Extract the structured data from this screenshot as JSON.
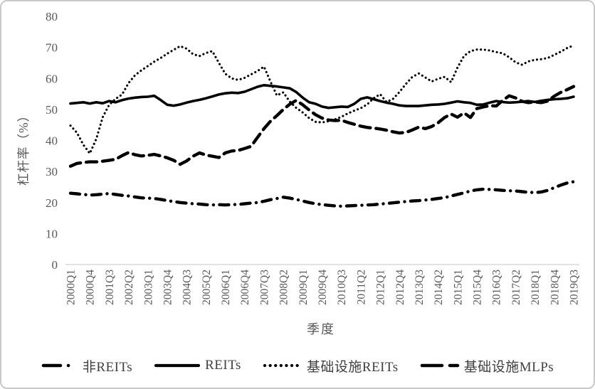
{
  "figure": {
    "tick_color": "#595959",
    "axis_title_color": "#595959",
    "legend_text_color": "#404040",
    "line_color": "#000000",
    "axis_line_color": "#d9d9d9",
    "border_color": "#c9c9c9",
    "legend": [
      {
        "slug": "non-reits",
        "label": "非REITs",
        "style": "dashdot"
      },
      {
        "slug": "reits",
        "label": "REITs",
        "style": "solid"
      },
      {
        "slug": "infra-reits",
        "label": "基础设施REITs",
        "style": "dotted"
      },
      {
        "slug": "infra-mlps",
        "label": "基础设施MLPs",
        "style": "dashed"
      }
    ]
  },
  "chart_data": {
    "type": "line",
    "title": "",
    "xlabel": "季度",
    "ylabel": "杠杆率（%）",
    "ylim": [
      0,
      80
    ],
    "y_ticks": [
      0,
      10,
      20,
      30,
      40,
      50,
      60,
      70,
      80
    ],
    "grid": false,
    "legend_position": "bottom",
    "x_tick_every": 3,
    "categories": [
      "2000Q1",
      "2000Q2",
      "2000Q3",
      "2000Q4",
      "2001Q1",
      "2001Q2",
      "2001Q3",
      "2001Q4",
      "2002Q1",
      "2002Q2",
      "2002Q3",
      "2002Q4",
      "2003Q1",
      "2003Q2",
      "2003Q3",
      "2003Q4",
      "2004Q1",
      "2004Q2",
      "2004Q3",
      "2004Q4",
      "2005Q1",
      "2005Q2",
      "2005Q3",
      "2005Q4",
      "2006Q1",
      "2006Q2",
      "2006Q3",
      "2006Q4",
      "2007Q1",
      "2007Q2",
      "2007Q3",
      "2007Q4",
      "2008Q1",
      "2008Q2",
      "2008Q3",
      "2008Q4",
      "2009Q1",
      "2009Q2",
      "2009Q3",
      "2009Q4",
      "2010Q1",
      "2010Q2",
      "2010Q3",
      "2010Q4",
      "2011Q1",
      "2011Q2",
      "2011Q3",
      "2011Q4",
      "2012Q1",
      "2012Q2",
      "2012Q3",
      "2012Q4",
      "2013Q1",
      "2013Q2",
      "2013Q3",
      "2013Q4",
      "2014Q1",
      "2014Q2",
      "2014Q3",
      "2014Q4",
      "2015Q1",
      "2015Q2",
      "2015Q3",
      "2015Q4",
      "2016Q1",
      "2016Q2",
      "2016Q3",
      "2016Q4",
      "2017Q1",
      "2017Q2",
      "2017Q3",
      "2017Q4",
      "2018Q1",
      "2018Q2",
      "2018Q3",
      "2018Q4",
      "2019Q1",
      "2019Q2",
      "2019Q3"
    ],
    "series": [
      {
        "name": "非REITs",
        "slug": "non-reits",
        "line_style": "dashdot",
        "color": "#000000",
        "values": [
          23.0,
          22.8,
          22.6,
          22.4,
          22.5,
          22.7,
          22.9,
          22.6,
          22.3,
          22.1,
          21.8,
          21.5,
          21.4,
          21.3,
          21.0,
          20.6,
          20.3,
          20.0,
          19.8,
          19.6,
          19.5,
          19.3,
          19.2,
          19.3,
          19.2,
          19.3,
          19.4,
          19.6,
          19.8,
          20.0,
          20.4,
          20.9,
          21.3,
          21.7,
          21.4,
          21.0,
          20.5,
          20.0,
          19.6,
          19.3,
          19.1,
          18.9,
          18.8,
          18.9,
          19.0,
          19.1,
          19.2,
          19.3,
          19.5,
          19.7,
          19.9,
          20.1,
          20.3,
          20.5,
          20.6,
          20.8,
          21.0,
          21.3,
          21.6,
          22.1,
          22.6,
          23.1,
          23.7,
          24.1,
          24.3,
          24.2,
          24.1,
          23.9,
          23.8,
          23.7,
          23.5,
          23.3,
          23.2,
          23.4,
          23.9,
          24.8,
          25.6,
          26.3,
          26.7
        ]
      },
      {
        "name": "REITs",
        "slug": "reits",
        "line_style": "solid",
        "color": "#000000",
        "values": [
          51.9,
          52.1,
          52.3,
          51.9,
          52.3,
          52.0,
          52.7,
          52.3,
          53.0,
          53.5,
          53.8,
          54.0,
          54.1,
          54.4,
          53.0,
          51.5,
          51.2,
          51.6,
          52.2,
          52.7,
          53.1,
          53.6,
          54.2,
          54.8,
          55.2,
          55.4,
          55.3,
          55.7,
          56.5,
          57.3,
          57.8,
          57.6,
          57.4,
          57.1,
          56.8,
          55.6,
          53.8,
          52.3,
          51.8,
          50.9,
          50.5,
          50.7,
          50.9,
          50.8,
          51.8,
          53.4,
          53.9,
          53.3,
          52.7,
          52.2,
          51.8,
          51.3,
          51.1,
          51.1,
          51.1,
          51.3,
          51.5,
          51.6,
          51.8,
          52.2,
          52.6,
          52.3,
          52.1,
          51.5,
          51.6,
          52.2,
          52.7,
          52.4,
          52.2,
          52.3,
          52.5,
          52.7,
          52.4,
          52.8,
          53.1,
          53.3,
          53.4,
          53.6,
          54.1
        ]
      },
      {
        "name": "基础设施REITs",
        "slug": "infra-reits",
        "line_style": "dotted",
        "color": "#000000",
        "values": [
          44.8,
          42.5,
          38.6,
          35.8,
          40.5,
          47.5,
          51.5,
          53.4,
          54.8,
          58.5,
          61.0,
          62.6,
          64.0,
          65.4,
          66.6,
          68.0,
          69.2,
          70.4,
          69.6,
          67.8,
          67.2,
          68.2,
          68.8,
          65.0,
          61.5,
          60.0,
          59.5,
          60.2,
          61.3,
          62.4,
          63.8,
          59.0,
          54.5,
          55.5,
          52.5,
          50.5,
          49.0,
          47.2,
          46.0,
          45.8,
          46.2,
          46.8,
          47.6,
          48.7,
          49.6,
          50.4,
          51.6,
          53.6,
          54.9,
          52.4,
          53.4,
          55.6,
          58.2,
          60.5,
          61.6,
          60.3,
          59.0,
          59.9,
          60.5,
          58.8,
          63.5,
          67.2,
          68.8,
          69.3,
          69.3,
          69.0,
          68.5,
          68.1,
          66.8,
          65.2,
          64.4,
          65.5,
          66.0,
          66.2,
          66.6,
          67.6,
          68.6,
          69.8,
          70.6
        ]
      },
      {
        "name": "基础设施MLPs",
        "slug": "infra-mlps",
        "line_style": "dashed",
        "color": "#000000",
        "values": [
          31.7,
          32.6,
          32.9,
          33.1,
          33.1,
          33.3,
          33.6,
          33.9,
          35.1,
          36.1,
          35.4,
          35.0,
          35.2,
          35.5,
          35.0,
          34.4,
          33.6,
          32.3,
          33.4,
          34.9,
          36.0,
          35.3,
          34.9,
          34.5,
          36.0,
          36.6,
          36.8,
          37.4,
          38.1,
          41.0,
          43.8,
          46.2,
          48.0,
          50.0,
          51.7,
          52.9,
          51.5,
          49.8,
          48.3,
          47.2,
          46.6,
          46.4,
          46.5,
          45.8,
          45.2,
          44.6,
          44.2,
          44.0,
          43.7,
          43.3,
          42.8,
          42.4,
          42.6,
          43.4,
          44.3,
          43.8,
          44.5,
          45.7,
          47.4,
          48.5,
          47.5,
          48.9,
          47.4,
          50.3,
          50.8,
          51.2,
          51.1,
          52.9,
          54.4,
          53.7,
          52.6,
          52.2,
          52.4,
          52.2,
          52.7,
          54.3,
          55.5,
          56.4,
          57.4
        ]
      }
    ]
  }
}
